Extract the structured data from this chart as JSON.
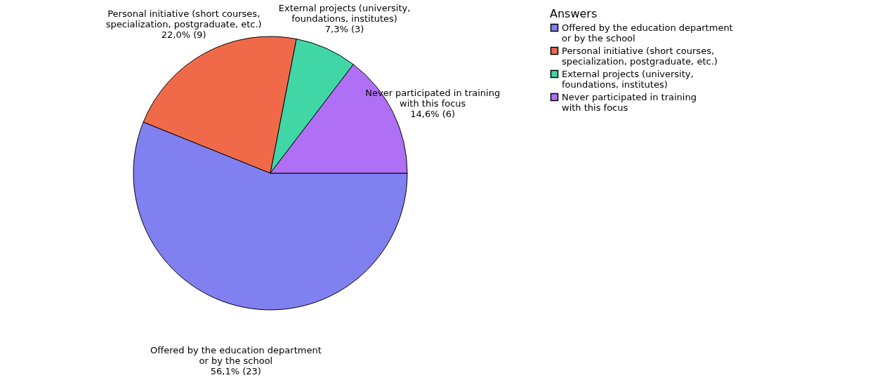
{
  "chart_data": {
    "type": "pie",
    "legend_title": "Answers",
    "legend": "right",
    "categories": [
      "Offered by the education department\nor by the school",
      "Personal initiative (short courses,\nspecialization, postgraduate, etc.)",
      "External projects (university,\nfoundations, institutes)",
      "Never participated in training\nwith this focus"
    ],
    "values": [
      23,
      9,
      3,
      6
    ],
    "value_labels": [
      "56,1% (23)",
      "22,0% (9)",
      "7,3% (3)",
      "14,6% (6)"
    ],
    "colors": [
      "#8080f0",
      "#f06a4a",
      "#40d6a6",
      "#b070f5"
    ]
  }
}
